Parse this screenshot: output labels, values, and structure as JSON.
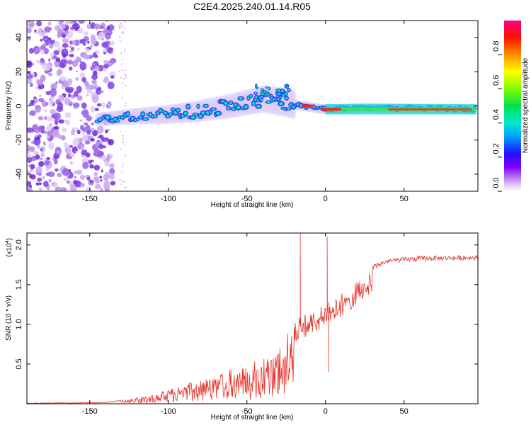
{
  "title": "C2E4.2025.240.01.14.R05",
  "chart_data": [
    {
      "type": "heatmap",
      "name": "spectrogram",
      "xlabel": "Height of straight line (km)",
      "ylabel": "Frequency (Hz)",
      "xlim": [
        -190,
        97
      ],
      "ylim": [
        -50,
        50
      ],
      "xticks": [
        -150,
        -100,
        -50,
        0,
        50
      ],
      "yticks": [
        -40,
        -20,
        0,
        20,
        40
      ],
      "ridge": [
        {
          "x": -145,
          "y": -8
        },
        {
          "x": -120,
          "y": -6
        },
        {
          "x": -100,
          "y": -5
        },
        {
          "x": -80,
          "y": -3
        },
        {
          "x": -60,
          "y": 0
        },
        {
          "x": -40,
          "y": 4
        },
        {
          "x": -25,
          "y": 2
        },
        {
          "x": -15,
          "y": 0
        },
        {
          "x": 0,
          "y": -2
        },
        {
          "x": 25,
          "y": -1
        },
        {
          "x": 95,
          "y": -2
        }
      ],
      "colorbar": {
        "label": "Normalized spectral amplitude",
        "range": [
          0,
          1
        ],
        "ticks": [
          "0.0",
          "0.2",
          "0.4",
          "0.6",
          "0.8"
        ]
      }
    },
    {
      "type": "line",
      "name": "snr",
      "xlabel": "Height of straight line (km)",
      "ylabel": "SNR (10 * v/v)",
      "exponent_label": "(x10",
      "exponent_power": "4",
      "exponent_close": ")",
      "xlim": [
        -190,
        97
      ],
      "ylim": [
        0,
        2.15
      ],
      "xticks": [
        -150,
        -100,
        -50,
        0,
        50
      ],
      "yticks": [
        "0.5",
        "1.0",
        "1.5",
        "2.0"
      ],
      "color": "#e8332b",
      "envelope": [
        {
          "x": -190,
          "y": 0.01
        },
        {
          "x": -140,
          "y": 0.02
        },
        {
          "x": -125,
          "y": 0.06
        },
        {
          "x": -110,
          "y": 0.12
        },
        {
          "x": -95,
          "y": 0.22
        },
        {
          "x": -80,
          "y": 0.3
        },
        {
          "x": -65,
          "y": 0.4
        },
        {
          "x": -50,
          "y": 0.48
        },
        {
          "x": -40,
          "y": 0.6
        },
        {
          "x": -30,
          "y": 0.75
        },
        {
          "x": -22,
          "y": 0.95
        },
        {
          "x": -17,
          "y": 1.1
        },
        {
          "x": -10,
          "y": 1.15
        },
        {
          "x": -5,
          "y": 1.2
        },
        {
          "x": 0,
          "y": 1.25
        },
        {
          "x": 8,
          "y": 1.35
        },
        {
          "x": 20,
          "y": 1.55
        },
        {
          "x": 30,
          "y": 1.72
        },
        {
          "x": 40,
          "y": 1.8
        },
        {
          "x": 60,
          "y": 1.83
        },
        {
          "x": 97,
          "y": 1.84
        }
      ],
      "spikes": [
        {
          "x": -16,
          "y": 2.15
        },
        {
          "x": 1,
          "y": 2.1
        },
        {
          "x": 2,
          "y": 0.4
        }
      ]
    }
  ]
}
